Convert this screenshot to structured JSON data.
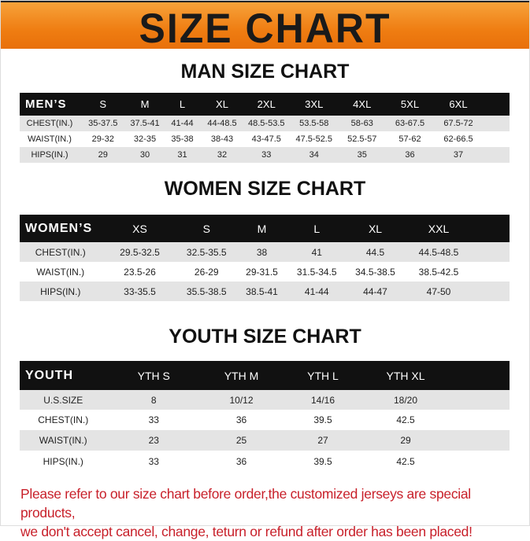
{
  "banner_title": "SIZE CHART",
  "colors": {
    "banner": "#ef7d12",
    "header_row": "#111111",
    "notice": "#c8202a",
    "stripe": "#e4e4e4"
  },
  "men": {
    "title": "MAN SIZE CHART",
    "header": [
      "MEN’S",
      "S",
      "M",
      "L",
      "XL",
      "2XL",
      "3XL",
      "4XL",
      "5XL",
      "6XL"
    ],
    "rows": [
      [
        "CHEST(IN.)",
        "35-37.5",
        "37.5-41",
        "41-44",
        "44-48.5",
        "48.5-53.5",
        "53.5-58",
        "58-63",
        "63-67.5",
        "67.5-72"
      ],
      [
        "WAIST(IN.)",
        "29-32",
        "32-35",
        "35-38",
        "38-43",
        "43-47.5",
        "47.5-52.5",
        "52.5-57",
        "57-62",
        "62-66.5"
      ],
      [
        "HIPS(IN.)",
        "29",
        "30",
        "31",
        "32",
        "33",
        "34",
        "35",
        "36",
        "37"
      ]
    ]
  },
  "women": {
    "title": "WOMEN SIZE CHART",
    "header": [
      "WOMEN’S",
      "XS",
      "S",
      "M",
      "L",
      "XL",
      "XXL"
    ],
    "rows": [
      [
        "CHEST(IN.)",
        "29.5-32.5",
        "32.5-35.5",
        "38",
        "41",
        "44.5",
        "44.5-48.5"
      ],
      [
        "WAIST(IN.)",
        "23.5-26",
        "26-29",
        "29-31.5",
        "31.5-34.5",
        "34.5-38.5",
        "38.5-42.5"
      ],
      [
        "HIPS(IN.)",
        "33-35.5",
        "35.5-38.5",
        "38.5-41",
        "41-44",
        "44-47",
        "47-50"
      ]
    ]
  },
  "youth": {
    "title": "YOUTH SIZE CHART",
    "header": [
      "YOUTH",
      "YTH S",
      "YTH M",
      "YTH L",
      "YTH XL"
    ],
    "rows": [
      [
        "U.S.SIZE",
        "8",
        "10/12",
        "14/16",
        "18/20"
      ],
      [
        "CHEST(IN.)",
        "33",
        "36",
        "39.5",
        "42.5"
      ],
      [
        "WAIST(IN.)",
        "23",
        "25",
        "27",
        "29"
      ],
      [
        "HIPS(IN.)",
        "33",
        "36",
        "39.5",
        "42.5"
      ]
    ]
  },
  "notice": {
    "line1": "Please refer to our size chart before order,the customized jerseys are special products,",
    "line2": "we don't accept cancel, change, teturn or refund after order has been placed!"
  }
}
